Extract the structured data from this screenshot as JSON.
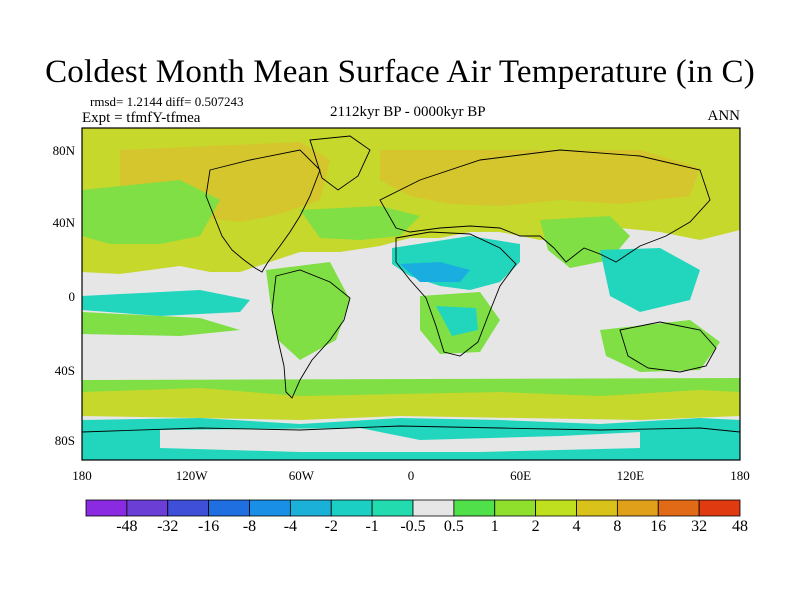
{
  "title": "Coldest Month Mean Surface Air Temperature (in C)",
  "stats": "rmsd= 1.2144 diff= 0.507243",
  "experiment": "Expt = tfmfY-tfmea",
  "period": "2112kyr BP - 0000kyr BP",
  "season": "ANN",
  "lon_labels": [
    "180",
    "120W",
    "60W",
    "0",
    "60E",
    "120E",
    "180"
  ],
  "lat_labels": [
    "80N",
    "40N",
    "0",
    "40S",
    "80S"
  ],
  "colorbar": {
    "labels": [
      "-48",
      "-32",
      "-16",
      "-8",
      "-4",
      "-2",
      "-1",
      "-0.5",
      "0.5",
      "1",
      "2",
      "4",
      "8",
      "16",
      "32",
      "48"
    ],
    "colors": [
      "#8a2be2",
      "#6b3fd6",
      "#3f4fd8",
      "#1f6fe0",
      "#1a8fe6",
      "#1ab0d8",
      "#1ccfc4",
      "#22dcb0",
      "#e6e6e6",
      "#4fe04a",
      "#8ee02c",
      "#bfe01f",
      "#d9c21a",
      "#e0a01a",
      "#e06a16",
      "#e03a10"
    ]
  },
  "regions": {
    "north_band": "#c6d82c",
    "north_core": "#d4c62c",
    "green": "#7fdf44",
    "neutral": "#e6e6e6",
    "cyan": "#22d6be",
    "blue": "#1aaee0"
  }
}
